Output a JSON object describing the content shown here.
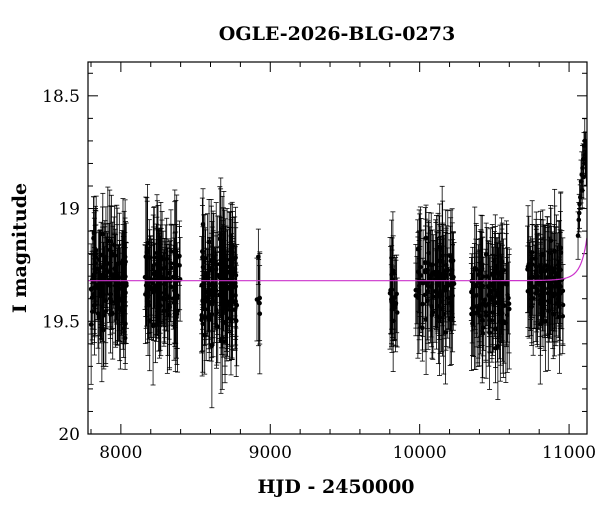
{
  "chart_data": {
    "type": "scatter",
    "title": "OGLE-2026-BLG-0273",
    "xlabel": "HJD - 2450000",
    "ylabel": "I magnitude",
    "xlim": [
      7780,
      11120
    ],
    "ylim": [
      20.0,
      18.35
    ],
    "y_inverted": true,
    "grid": false,
    "x_ticks": [
      8000,
      9000,
      10000,
      11000
    ],
    "x_tick_labels": [
      "8000",
      "9000",
      "10000",
      "11000"
    ],
    "y_ticks": [
      18.5,
      19.0,
      19.5,
      20.0
    ],
    "y_tick_labels": [
      "18.5",
      "19",
      "19.5",
      "20"
    ],
    "colors": {
      "points": "#000000",
      "errorbars": "#000000",
      "model": "#cc33cc"
    },
    "observing_seasons": [
      {
        "x_range": [
          7800,
          8040
        ],
        "mean_mag": 19.33,
        "scatter": 0.14,
        "n_points": 120
      },
      {
        "x_range": [
          8160,
          8400
        ],
        "mean_mag": 19.33,
        "scatter": 0.12,
        "n_points": 110
      },
      {
        "x_range": [
          8540,
          8780
        ],
        "mean_mag": 19.35,
        "scatter": 0.15,
        "n_points": 150
      },
      {
        "x_range": [
          8910,
          8930
        ],
        "mean_mag": 19.35,
        "scatter": 0.12,
        "n_points": 6
      },
      {
        "x_range": [
          9800,
          9850
        ],
        "mean_mag": 19.38,
        "scatter": 0.12,
        "n_points": 22
      },
      {
        "x_range": [
          9970,
          10230
        ],
        "mean_mag": 19.33,
        "scatter": 0.12,
        "n_points": 110
      },
      {
        "x_range": [
          10340,
          10600
        ],
        "mean_mag": 19.37,
        "scatter": 0.13,
        "n_points": 110
      },
      {
        "x_range": [
          10720,
          10960
        ],
        "mean_mag": 19.34,
        "scatter": 0.11,
        "n_points": 110
      }
    ],
    "rising_points": [
      {
        "x": 11060,
        "y": 19.12
      },
      {
        "x": 11065,
        "y": 19.05
      },
      {
        "x": 11070,
        "y": 18.98
      },
      {
        "x": 11075,
        "y": 18.95
      },
      {
        "x": 11080,
        "y": 18.88
      },
      {
        "x": 11085,
        "y": 18.85
      },
      {
        "x": 11090,
        "y": 18.82
      },
      {
        "x": 11095,
        "y": 18.78
      },
      {
        "x": 11100,
        "y": 18.72
      },
      {
        "x": 11105,
        "y": 18.7
      },
      {
        "x": 11110,
        "y": 18.72
      },
      {
        "x": 11112,
        "y": 18.76
      },
      {
        "x": 11115,
        "y": 18.8
      },
      {
        "x": 11068,
        "y": 19.02
      },
      {
        "x": 11088,
        "y": 18.92
      },
      {
        "x": 11098,
        "y": 18.86
      },
      {
        "x": 11108,
        "y": 18.8
      }
    ],
    "model_curve": {
      "type": "point-lens",
      "baseline_mag": 19.32,
      "peak_time": 11175,
      "peak_rise": 1.1,
      "tE": 80,
      "u0": 0.05
    }
  }
}
